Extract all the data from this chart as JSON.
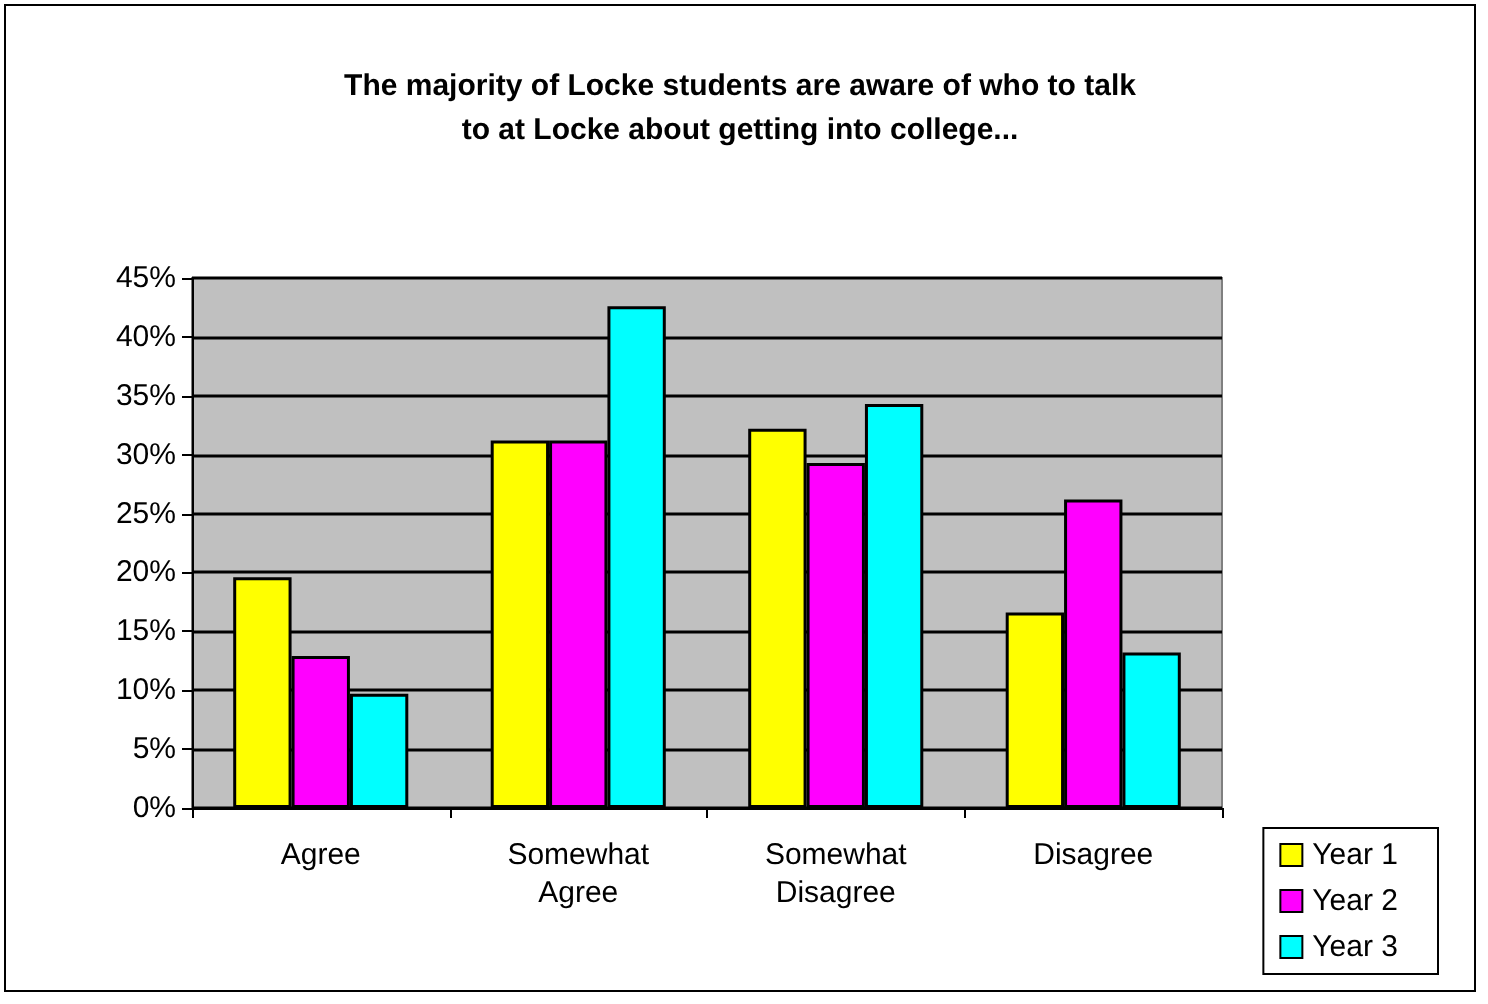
{
  "chart_data": {
    "type": "bar",
    "title": "The majority of Locke students are aware of who to talk\nto at Locke about getting into college...",
    "categories": [
      "Agree",
      "Somewhat Agree",
      "Somewhat Disagree",
      "Disagree"
    ],
    "series": [
      {
        "name": "Year 1",
        "color": "#ffff00",
        "values": [
          19.6,
          31.2,
          32.2,
          16.6
        ]
      },
      {
        "name": "Year 2",
        "color": "#ff00ff",
        "values": [
          12.9,
          31.2,
          29.3,
          26.2
        ]
      },
      {
        "name": "Year 3",
        "color": "#00ffff",
        "values": [
          9.7,
          42.6,
          34.3,
          13.2
        ]
      }
    ],
    "ylim": [
      0,
      45
    ],
    "yticks": [
      {
        "value": 0,
        "label": "0%"
      },
      {
        "value": 5,
        "label": "5%"
      },
      {
        "value": 10,
        "label": "10%"
      },
      {
        "value": 15,
        "label": "15%"
      },
      {
        "value": 20,
        "label": "20%"
      },
      {
        "value": 25,
        "label": "25%"
      },
      {
        "value": 30,
        "label": "30%"
      },
      {
        "value": 35,
        "label": "35%"
      },
      {
        "value": 40,
        "label": "40%"
      },
      {
        "value": 45,
        "label": "45%"
      }
    ],
    "grid": "y",
    "legend": "bottom right"
  }
}
